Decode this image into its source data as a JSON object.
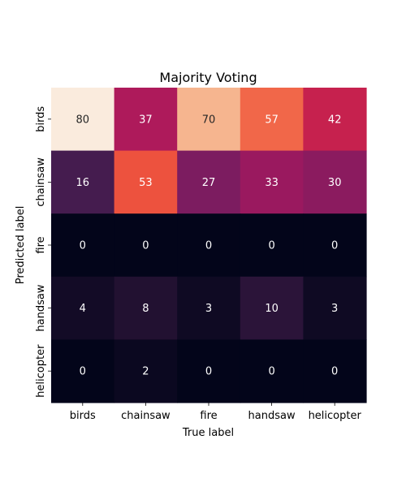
{
  "chart_data": {
    "type": "heatmap",
    "title": "Majority Voting",
    "xlabel": "True label",
    "ylabel": "Predicted label",
    "x_categories": [
      "birds",
      "chainsaw",
      "fire",
      "handsaw",
      "helicopter"
    ],
    "y_categories": [
      "birds",
      "chainsaw",
      "fire",
      "handsaw",
      "helicopter"
    ],
    "values": [
      [
        80,
        37,
        70,
        57,
        42
      ],
      [
        16,
        53,
        27,
        33,
        30
      ],
      [
        0,
        0,
        0,
        0,
        0
      ],
      [
        4,
        8,
        3,
        10,
        3
      ],
      [
        0,
        2,
        0,
        0,
        0
      ]
    ],
    "value_range": [
      0,
      80
    ],
    "colormap": "rocket",
    "colorbar": false,
    "grid": false
  }
}
